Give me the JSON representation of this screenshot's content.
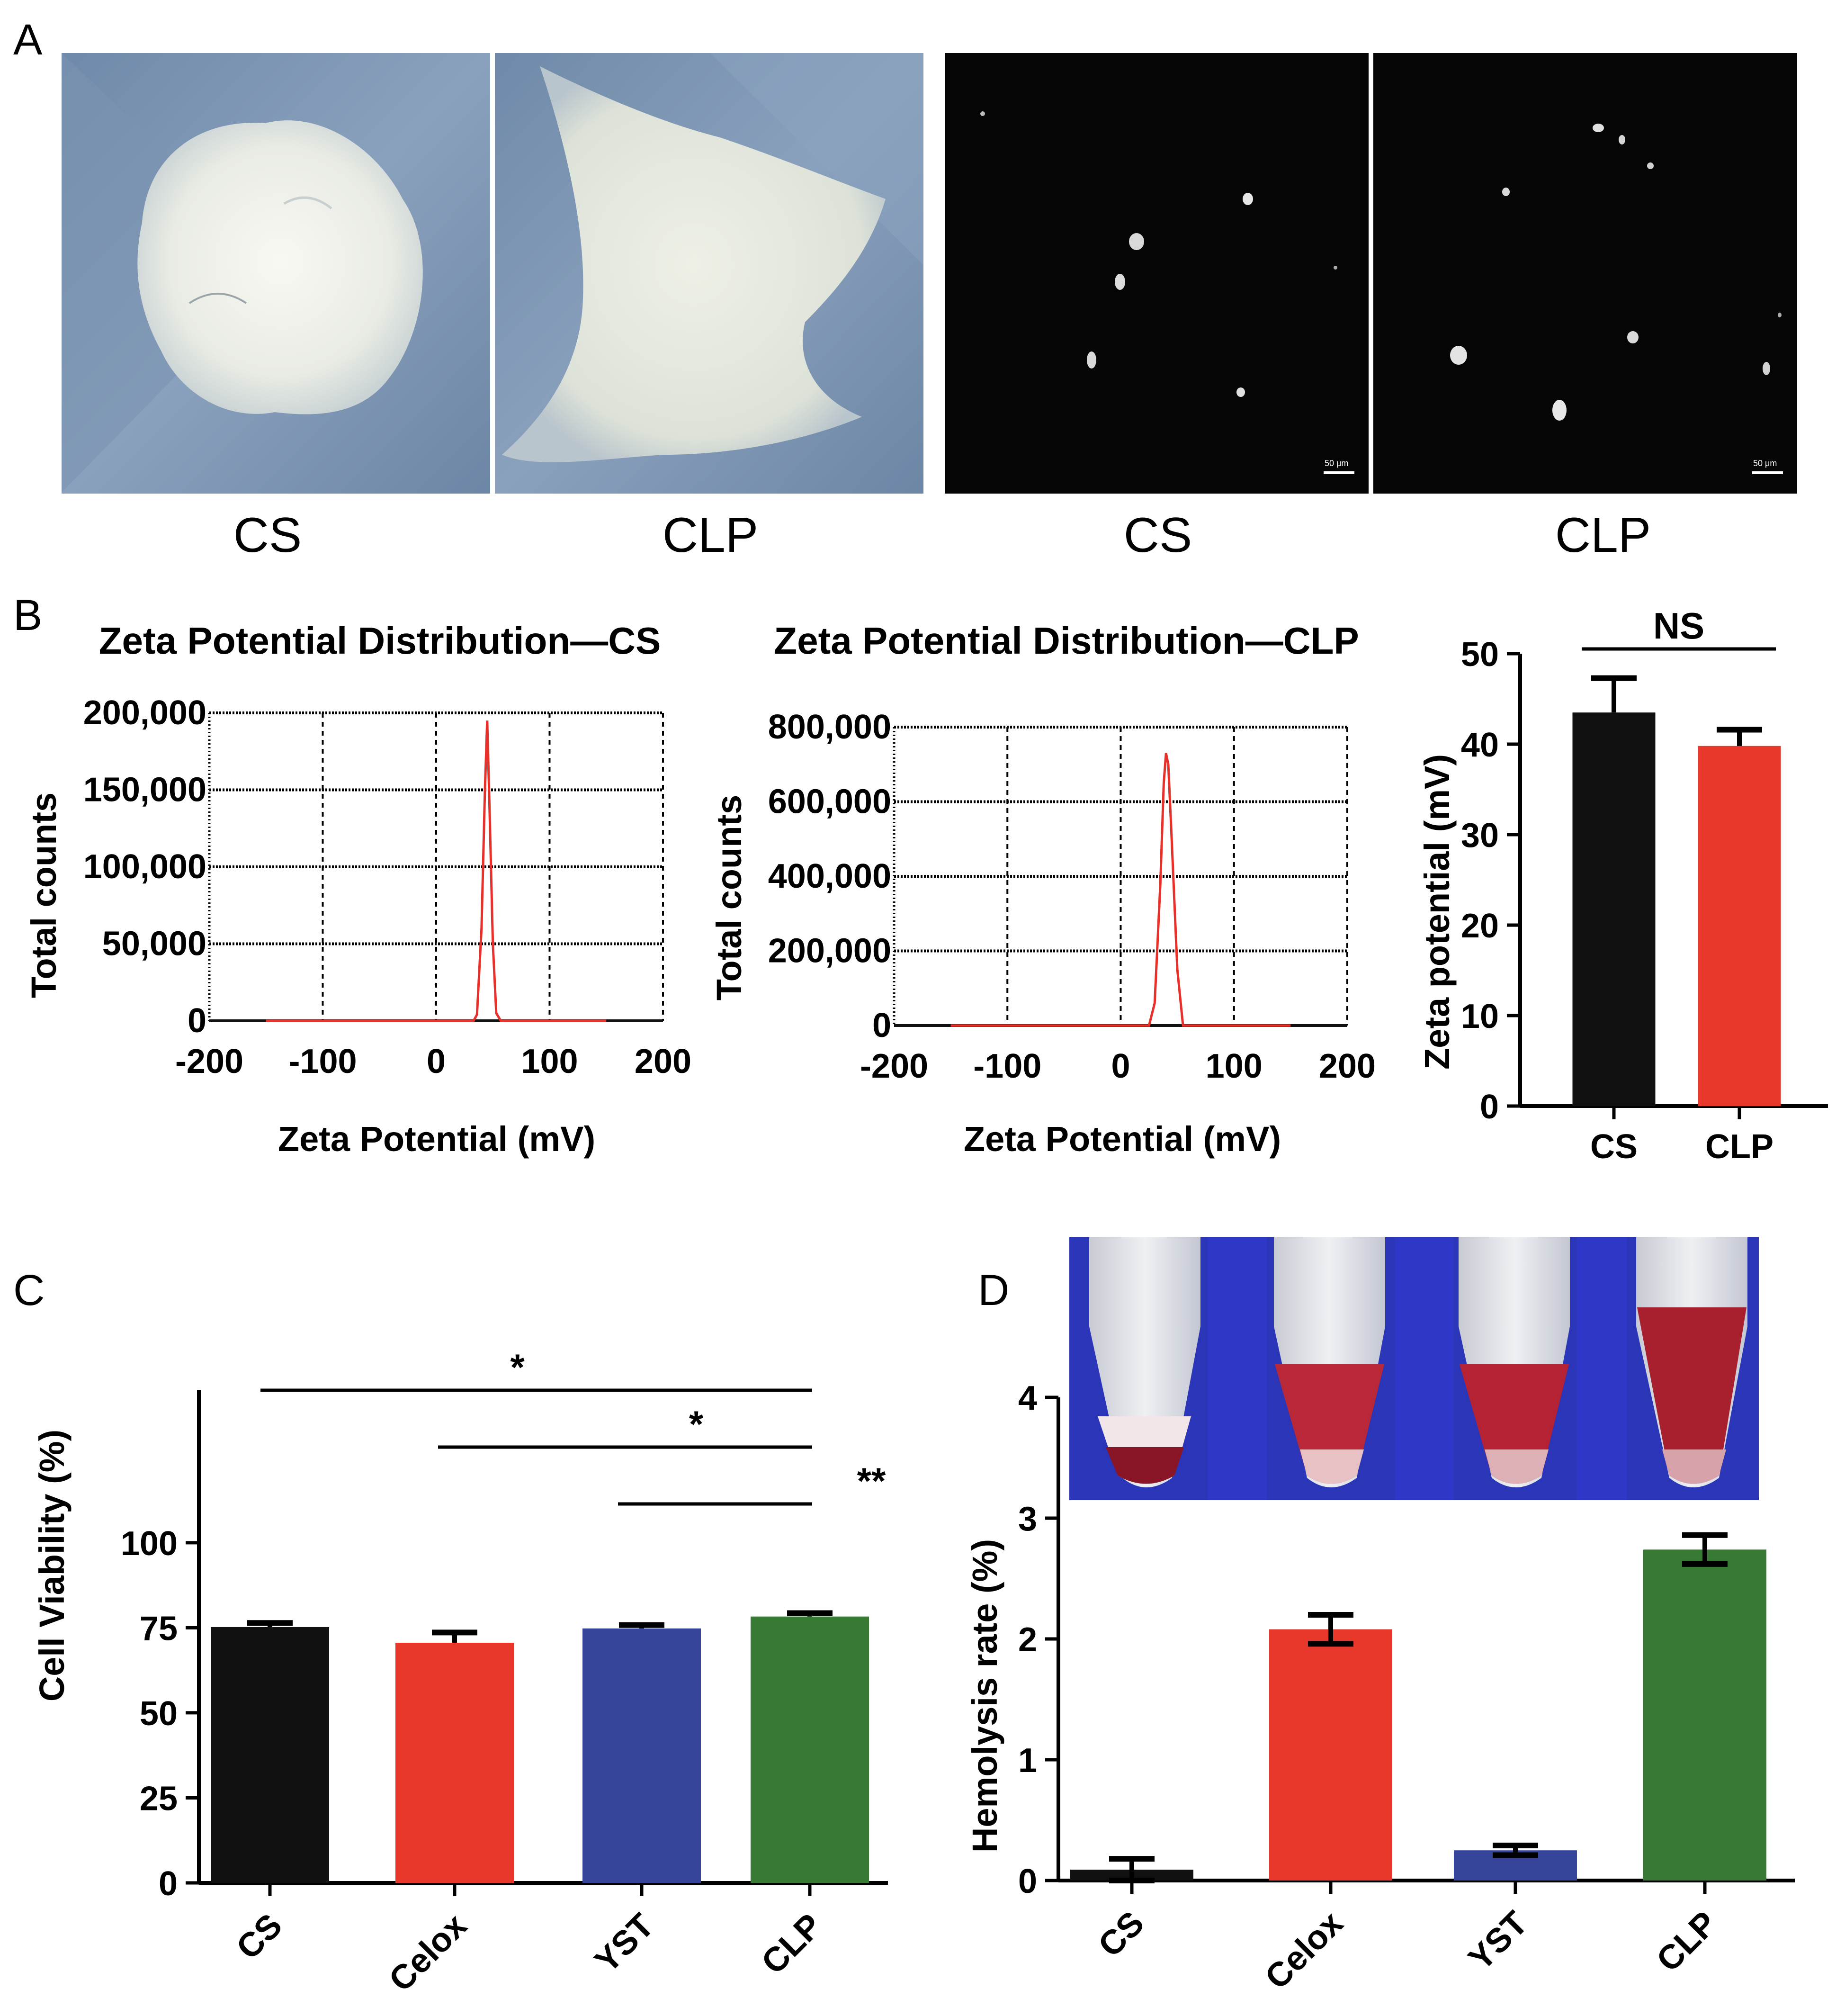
{
  "panels": {
    "a": "A",
    "b": "B",
    "c": "C",
    "d": "D"
  },
  "photo_labels": [
    "CS",
    "CLP",
    "CS",
    "CLP"
  ],
  "scale_bar": "50 μm",
  "colors": {
    "black": "#111111",
    "red": "#e8382c",
    "blue": "#36449a",
    "green": "#367a34",
    "curve": "#e8302a",
    "photo_paper": "#7d96b4",
    "rack_blue": "#2c36bf"
  },
  "chart_data": [
    {
      "id": "zeta-cs",
      "type": "line",
      "title": "Zeta Potential Distribution—CS",
      "xlabel": "Zeta Potential (mV)",
      "ylabel": "Total counts",
      "xlim": [
        -200,
        200
      ],
      "ylim": [
        0,
        200000
      ],
      "xticks": [
        -200,
        -100,
        0,
        100,
        200
      ],
      "yticks": [
        0,
        50000,
        100000,
        150000,
        200000
      ],
      "ytick_labels": [
        "0",
        "50,000",
        "100,000",
        "150,000",
        "200,000"
      ],
      "grid": true,
      "series": [
        {
          "x": [
            -150,
            33,
            36,
            40,
            43,
            45,
            47,
            50,
            53,
            57,
            150
          ],
          "y": [
            0,
            0,
            4000,
            60000,
            150000,
            195000,
            140000,
            50000,
            5000,
            0,
            0
          ]
        }
      ]
    },
    {
      "id": "zeta-clp",
      "type": "line",
      "title": "Zeta Potential Distribution—CLP",
      "xlabel": "Zeta Potential (mV)",
      "ylabel": "Total counts",
      "xlim": [
        -200,
        200
      ],
      "ylim": [
        0,
        800000
      ],
      "xticks": [
        -200,
        -100,
        0,
        100,
        200
      ],
      "yticks": [
        0,
        200000,
        400000,
        600000,
        800000
      ],
      "ytick_labels": [
        "0",
        "200,000",
        "400,000",
        "600,000",
        "800,000"
      ],
      "grid": true,
      "series": [
        {
          "x": [
            -150,
            25,
            30,
            35,
            38,
            40,
            42,
            45,
            50,
            55,
            150
          ],
          "y": [
            0,
            0,
            60000,
            380000,
            650000,
            730000,
            700000,
            500000,
            150000,
            0,
            0
          ]
        }
      ]
    },
    {
      "id": "zeta-bar",
      "type": "bar",
      "categories": [
        "CS",
        "CLP"
      ],
      "values": [
        43.5,
        39.8
      ],
      "errors": [
        3.8,
        1.8
      ],
      "ylabel": "Zeta potential (mV)",
      "ylim": [
        0,
        50
      ],
      "yticks": [
        0,
        10,
        20,
        30,
        40,
        50
      ],
      "significance": [
        {
          "from": 0,
          "to": 1,
          "label": "NS"
        }
      ]
    },
    {
      "id": "viability",
      "type": "bar",
      "categories": [
        "CS",
        "Celox",
        "YST",
        "CLP"
      ],
      "values": [
        75.2,
        70.6,
        74.8,
        78.3
      ],
      "errors": [
        1.2,
        3.0,
        1.0,
        1.0
      ],
      "ylabel": "Cell  Viability (%)",
      "ylim": [
        0,
        110
      ],
      "yticks": [
        0,
        25,
        50,
        75,
        100
      ],
      "significance": [
        {
          "from": 0,
          "to": 3,
          "label": "*"
        },
        {
          "from": 1,
          "to": 3,
          "label": "*"
        },
        {
          "from": 2,
          "to": 3,
          "label": "**"
        }
      ]
    },
    {
      "id": "hemolysis",
      "type": "bar",
      "categories": [
        "CS",
        "Celox",
        "YST",
        "CLP"
      ],
      "values": [
        0.09,
        2.08,
        0.25,
        2.74
      ],
      "errors": [
        0.09,
        0.12,
        0.04,
        0.12
      ],
      "ylabel": "Hemolysis rate (%)",
      "ylim": [
        0,
        4
      ],
      "yticks": [
        0,
        1,
        2,
        3,
        4
      ]
    }
  ]
}
